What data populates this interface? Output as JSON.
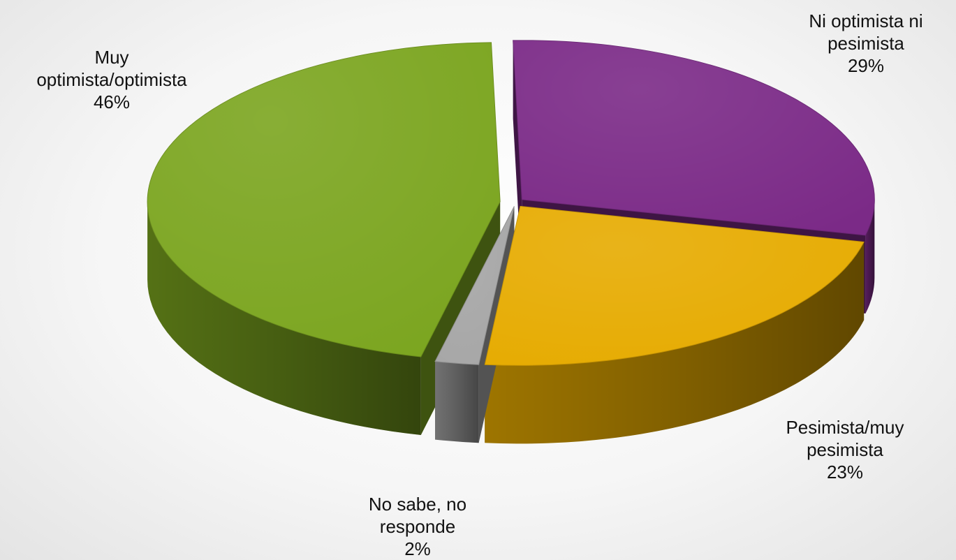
{
  "chart_data": {
    "type": "pie",
    "title": "",
    "style": "3d-exploded",
    "slices": [
      {
        "label_lines": [
          "Ni optimista ni",
          "pesimista"
        ],
        "pct_text": "29%",
        "value": 29,
        "color": "#7b2a87"
      },
      {
        "label_lines": [
          "Pesimista/muy",
          "pesimista"
        ],
        "pct_text": "23%",
        "value": 23,
        "color": "#e6ab00"
      },
      {
        "label_lines": [
          "No sabe, no",
          "responde"
        ],
        "pct_text": "2%",
        "value": 2,
        "color": "#a6a6a6"
      },
      {
        "label_lines": [
          "Muy",
          "optimista/optimista"
        ],
        "pct_text": "46%",
        "value": 46,
        "color": "#7ba51f"
      }
    ]
  }
}
